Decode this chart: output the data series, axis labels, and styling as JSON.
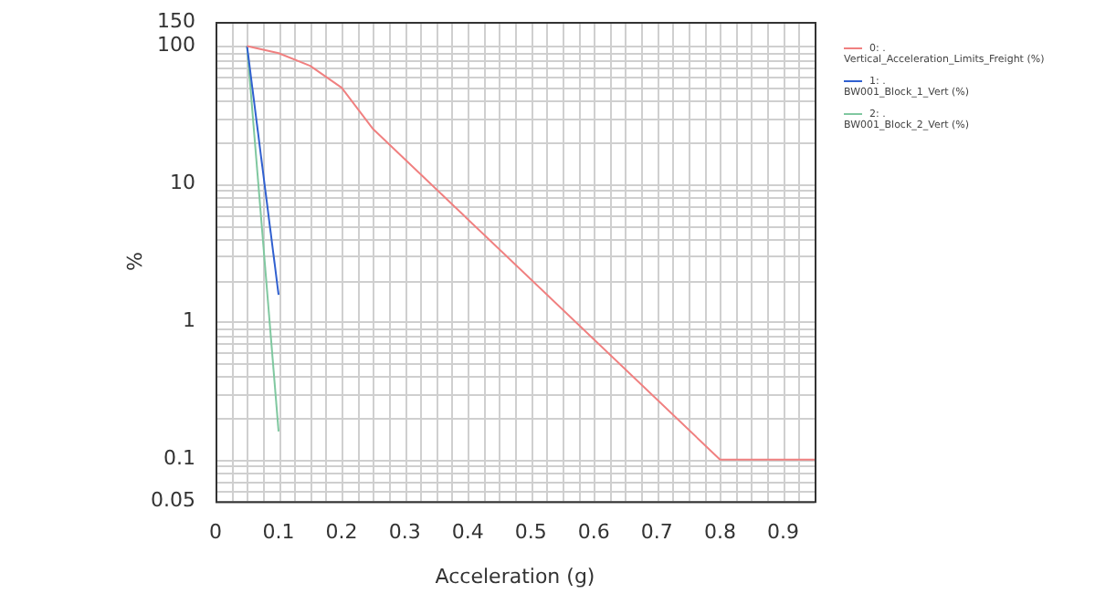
{
  "chart_data": {
    "type": "line",
    "xlabel": "Acceleration (g)",
    "ylabel": "%",
    "log": "y",
    "grid": true,
    "legend": "right",
    "marker": "none",
    "line_style": "solid",
    "xlim": [
      0,
      0.95
    ],
    "xticks": [
      0,
      0.1,
      0.2,
      0.3,
      0.4,
      0.5,
      0.6,
      0.7,
      0.8,
      0.9
    ],
    "ylim": [
      0.05,
      150
    ],
    "yticks": [
      0.05,
      0.1,
      1,
      10,
      100,
      150
    ],
    "series": [
      {
        "name": "0: .\nVertical_Acceleration_Limits_Freight (%)",
        "color": "#f08080",
        "x": [
          0.05,
          0.1,
          0.15,
          0.2,
          0.25,
          0.8,
          0.95
        ],
        "values": [
          100,
          89,
          72,
          50,
          25,
          0.1,
          0.1
        ]
      },
      {
        "name": "1: .\nBW001_Block_1_Vert (%)",
        "color": "#3060d0",
        "x": [
          0.05,
          0.1
        ],
        "values": [
          100,
          1.57
        ]
      },
      {
        "name": "2: .\nBW001_Block_2_Vert (%)",
        "color": "#80c8a0",
        "x": [
          0.05,
          0.1
        ],
        "values": [
          100,
          0.16
        ]
      }
    ]
  }
}
